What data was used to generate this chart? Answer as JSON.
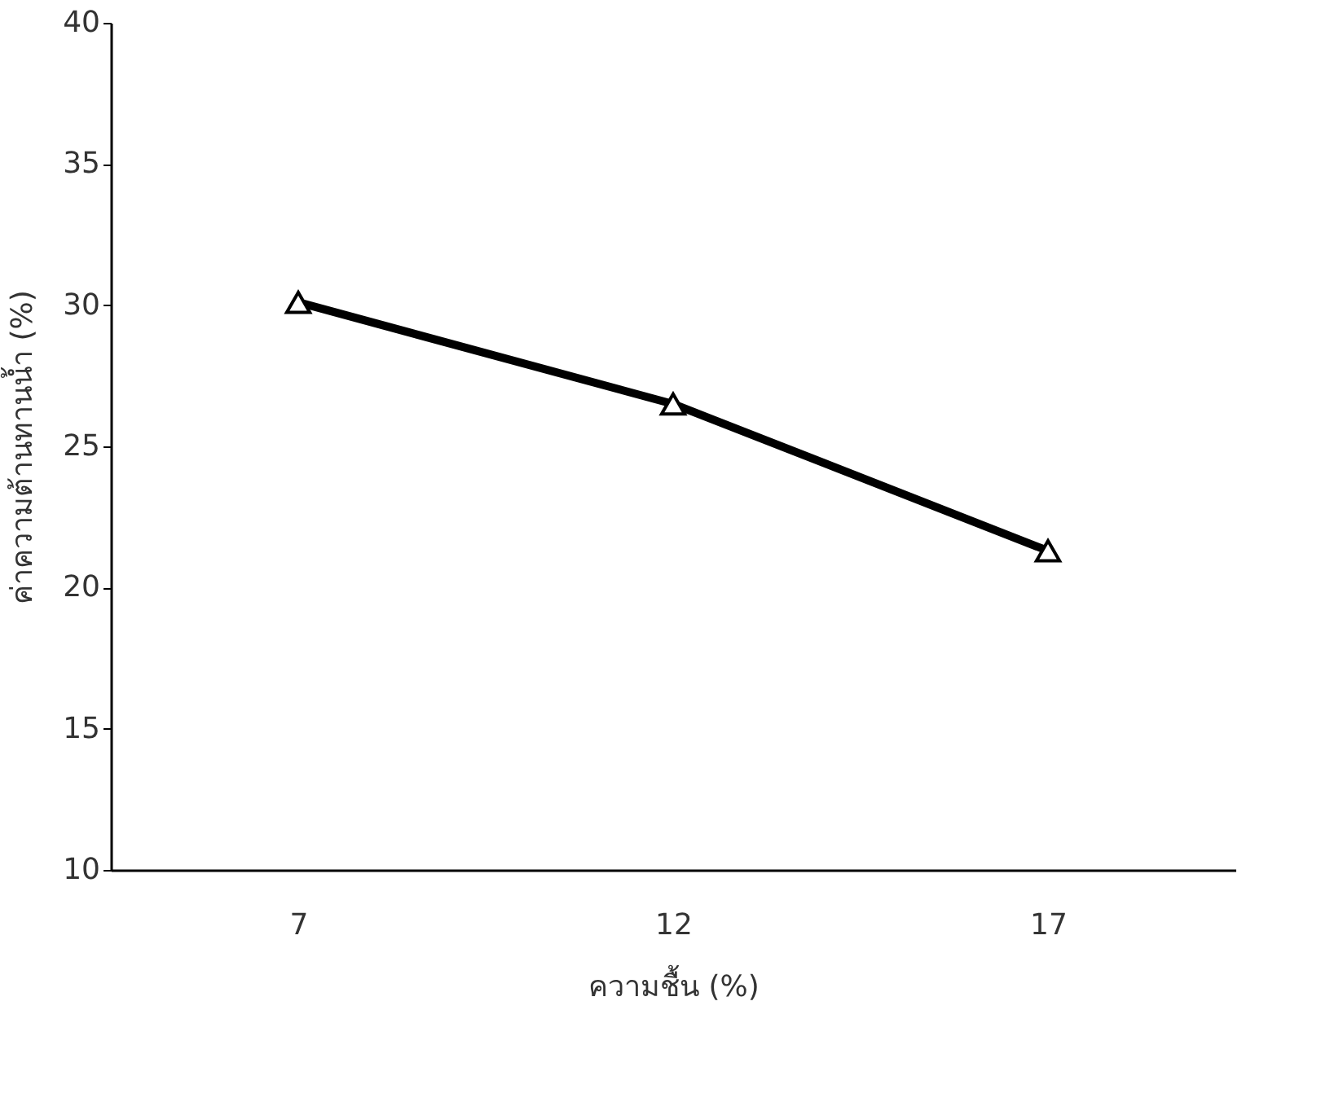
{
  "chart_data": {
    "type": "line",
    "xlabel": "ความชื้น (%)",
    "ylabel": "ค่าความต้านทานน้ำ (%)",
    "categories": [
      "7",
      "12",
      "17"
    ],
    "series": [
      {
        "color": "#000000",
        "values": [
          30.1,
          26.5,
          21.3
        ]
      }
    ],
    "ylim": [
      10,
      40
    ],
    "yticks": [
      10,
      15,
      20,
      25,
      30,
      35,
      40
    ],
    "grid": false,
    "marker": "triangle",
    "line_style": "solid"
  }
}
